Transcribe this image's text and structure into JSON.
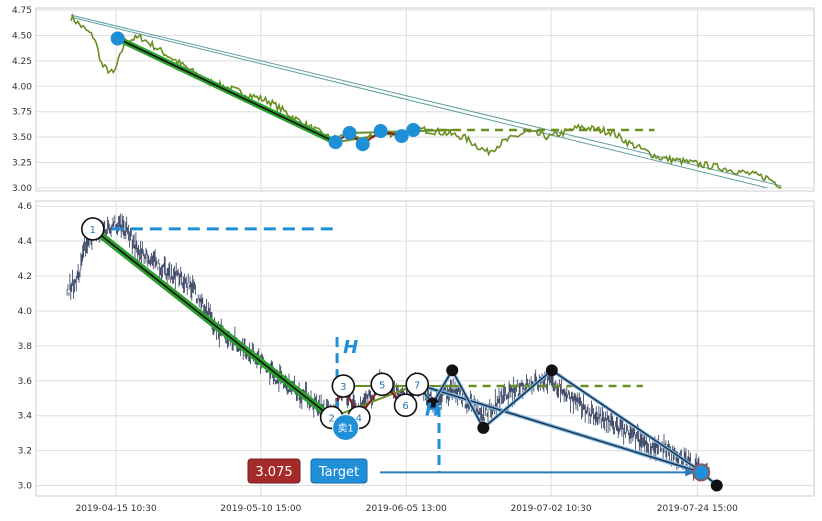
{
  "chart_data": [
    {
      "panel": "top",
      "type": "line",
      "ylim": [
        2.97,
        4.77
      ],
      "yticks": [
        "3.00",
        "3.25",
        "3.50",
        "3.75",
        "4.00",
        "4.25",
        "4.50",
        "4.75"
      ],
      "grid": true,
      "colors": {
        "price": "#6b8e23",
        "trend": "#2ca02c",
        "channel": "#5f9ea0",
        "marker": "#1f8fd8"
      },
      "pivots": [
        {
          "t": 0.105,
          "price": 4.47
        },
        {
          "t": 0.385,
          "price": 3.45
        },
        {
          "t": 0.403,
          "price": 3.54
        },
        {
          "t": 0.42,
          "price": 3.43
        },
        {
          "t": 0.443,
          "price": 3.56
        },
        {
          "t": 0.47,
          "price": 3.51
        },
        {
          "t": 0.485,
          "price": 3.57
        }
      ],
      "resistance_level": 3.57
    },
    {
      "panel": "bottom",
      "type": "line",
      "ylim": [
        2.94,
        4.63
      ],
      "yticks": [
        "3.0",
        "3.2",
        "3.4",
        "3.6",
        "3.8",
        "4.0",
        "4.2",
        "4.4",
        "4.6"
      ],
      "xticks": [
        "2019-04-15 10:30",
        "2019-05-10 15:00",
        "2019-06-05 13:00",
        "2019-07-02 10:30",
        "2019-07-24 15:00"
      ],
      "grid": true,
      "colors": {
        "price": "#2f3b5c",
        "trend": "#2ca02c",
        "pivot_line": "#1f2a44",
        "level": "#1f8fd8",
        "box": "#6b8e23"
      },
      "wave_points": [
        {
          "label": "1",
          "t": 0.073,
          "price": 4.47
        },
        {
          "label": "2",
          "t": 0.38,
          "price": 3.39
        },
        {
          "label": "3",
          "t": 0.395,
          "price": 3.57
        },
        {
          "label": "4",
          "t": 0.415,
          "price": 3.39
        },
        {
          "label": "5",
          "t": 0.445,
          "price": 3.58
        },
        {
          "label": "6",
          "t": 0.475,
          "price": 3.46
        },
        {
          "label": "7",
          "t": 0.49,
          "price": 3.58
        }
      ],
      "zigzag": [
        {
          "t": 0.51,
          "price": 3.47
        },
        {
          "t": 0.535,
          "price": 3.66
        },
        {
          "t": 0.575,
          "price": 3.33
        },
        {
          "t": 0.663,
          "price": 3.66
        },
        {
          "t": 0.855,
          "price": 3.08
        },
        {
          "t": 0.875,
          "price": 3.0
        }
      ],
      "resistance_level": 4.47,
      "box_level": 3.57,
      "target_price": 3.075,
      "labels": {
        "h_upper": "H",
        "h_lower": "H",
        "sell_point": "卖1",
        "target_value": "3.075",
        "target_label": "Target"
      }
    }
  ]
}
